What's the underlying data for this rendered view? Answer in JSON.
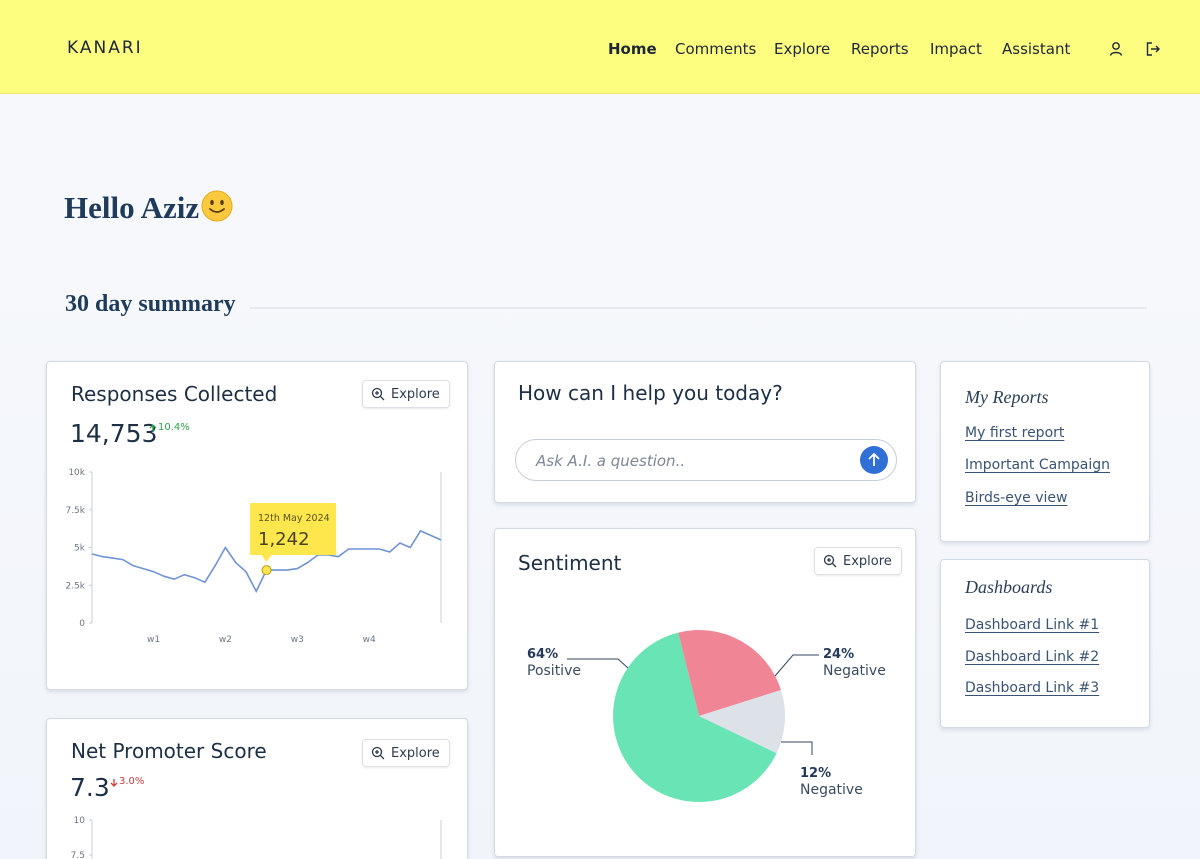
{
  "header": {
    "logo": "KANARI",
    "nav": [
      "Home",
      "Comments",
      "Explore",
      "Reports",
      "Impact",
      "Assistant"
    ]
  },
  "greeting": "Hello Aziz",
  "section_title": "30 day summary",
  "responses": {
    "title": "Responses Collected",
    "explore": "Explore",
    "total": "14,753",
    "change": "10.4%",
    "tooltip": {
      "date": "12th May 2024",
      "value": "1,242"
    },
    "chart": {
      "type": "line",
      "color": "#6f93d6",
      "categories": [
        null,
        null,
        null,
        null,
        null,
        null,
        "w1",
        null,
        null,
        null,
        null,
        null,
        null,
        "w2",
        null,
        null,
        null,
        null,
        null,
        null,
        "w3",
        null,
        null,
        null,
        null,
        null,
        null,
        "w4",
        null,
        null,
        null,
        null,
        null,
        null,
        null
      ],
      "values": [
        4570,
        4400,
        4300,
        4200,
        3800,
        3600,
        3400,
        3100,
        2900,
        3200,
        3000,
        2700,
        3800,
        5000,
        4000,
        3400,
        2100,
        3500,
        3500,
        3500,
        3600,
        4000,
        4500,
        4500,
        4400,
        4900,
        4900,
        4900,
        4900,
        4700,
        5300,
        5000,
        6100,
        5800,
        5500
      ],
      "ylim": [
        0,
        10000
      ],
      "yticks": [
        0,
        {
          "value": 2500,
          "label": "2.5k"
        },
        {
          "value": 5000,
          "label": "5k"
        },
        {
          "value": 7500,
          "label": "7.5k"
        },
        {
          "value": 10000,
          "label": "10k"
        }
      ]
    }
  },
  "nps": {
    "title": "Net Promoter Score",
    "explore": "Explore",
    "score": "7.3",
    "change": "3.0%",
    "chart": {
      "type": "line",
      "ylim": [
        0,
        10
      ],
      "yticks": [
        7.5,
        10
      ]
    }
  },
  "assistant": {
    "title": "How can I help you today?",
    "placeholder": "Ask A.I. a question.."
  },
  "sentiment": {
    "title": "Sentiment",
    "explore": "Explore",
    "chart": {
      "type": "pie",
      "values": [
        64,
        24,
        12
      ],
      "value_labels": [
        "64%",
        "24%",
        "12%"
      ],
      "labels": [
        "Positive",
        "Negative",
        "Negative"
      ],
      "colors": [
        "#69e4b4",
        "#ef8595",
        "#dde1e8"
      ]
    }
  },
  "my_reports": {
    "title": "My Reports",
    "links": [
      "My first report",
      "Important Campaign",
      "Birds-eye view"
    ]
  },
  "dashboards": {
    "title": "Dashboards",
    "links": [
      "Dashboard Link #1",
      "Dashboard Link #2",
      "Dashboard Link #3"
    ]
  }
}
